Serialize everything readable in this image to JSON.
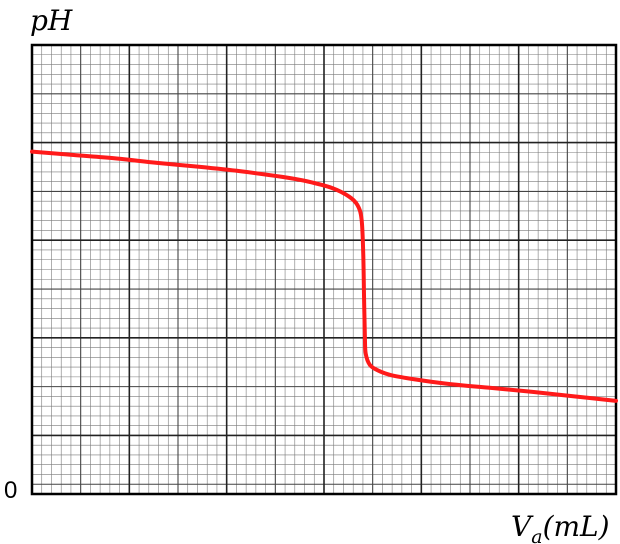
{
  "chart_data": {
    "type": "line",
    "title": "",
    "ylabel": "pH",
    "xlabel_main": "V",
    "xlabel_sub": "a",
    "xlabel_unit": "(mL)",
    "origin_label": "0",
    "grid": true,
    "xlim": [
      0,
      7
    ],
    "ylim": [
      0,
      8
    ],
    "series": [
      {
        "color": "#ff1a1a",
        "points": [
          [
            0.0,
            6.1
          ],
          [
            0.5,
            6.04
          ],
          [
            1.0,
            5.98
          ],
          [
            1.5,
            5.9
          ],
          [
            2.0,
            5.83
          ],
          [
            2.5,
            5.75
          ],
          [
            3.0,
            5.65
          ],
          [
            3.3,
            5.57
          ],
          [
            3.6,
            5.45
          ],
          [
            3.8,
            5.3
          ],
          [
            3.9,
            5.15
          ],
          [
            3.95,
            4.9
          ],
          [
            3.97,
            4.3
          ],
          [
            3.98,
            3.5
          ],
          [
            3.99,
            2.8
          ],
          [
            4.0,
            2.5
          ],
          [
            4.05,
            2.3
          ],
          [
            4.15,
            2.2
          ],
          [
            4.3,
            2.12
          ],
          [
            4.6,
            2.04
          ],
          [
            5.0,
            1.96
          ],
          [
            5.5,
            1.89
          ],
          [
            6.0,
            1.82
          ],
          [
            6.5,
            1.74
          ],
          [
            7.0,
            1.66
          ]
        ]
      }
    ]
  }
}
